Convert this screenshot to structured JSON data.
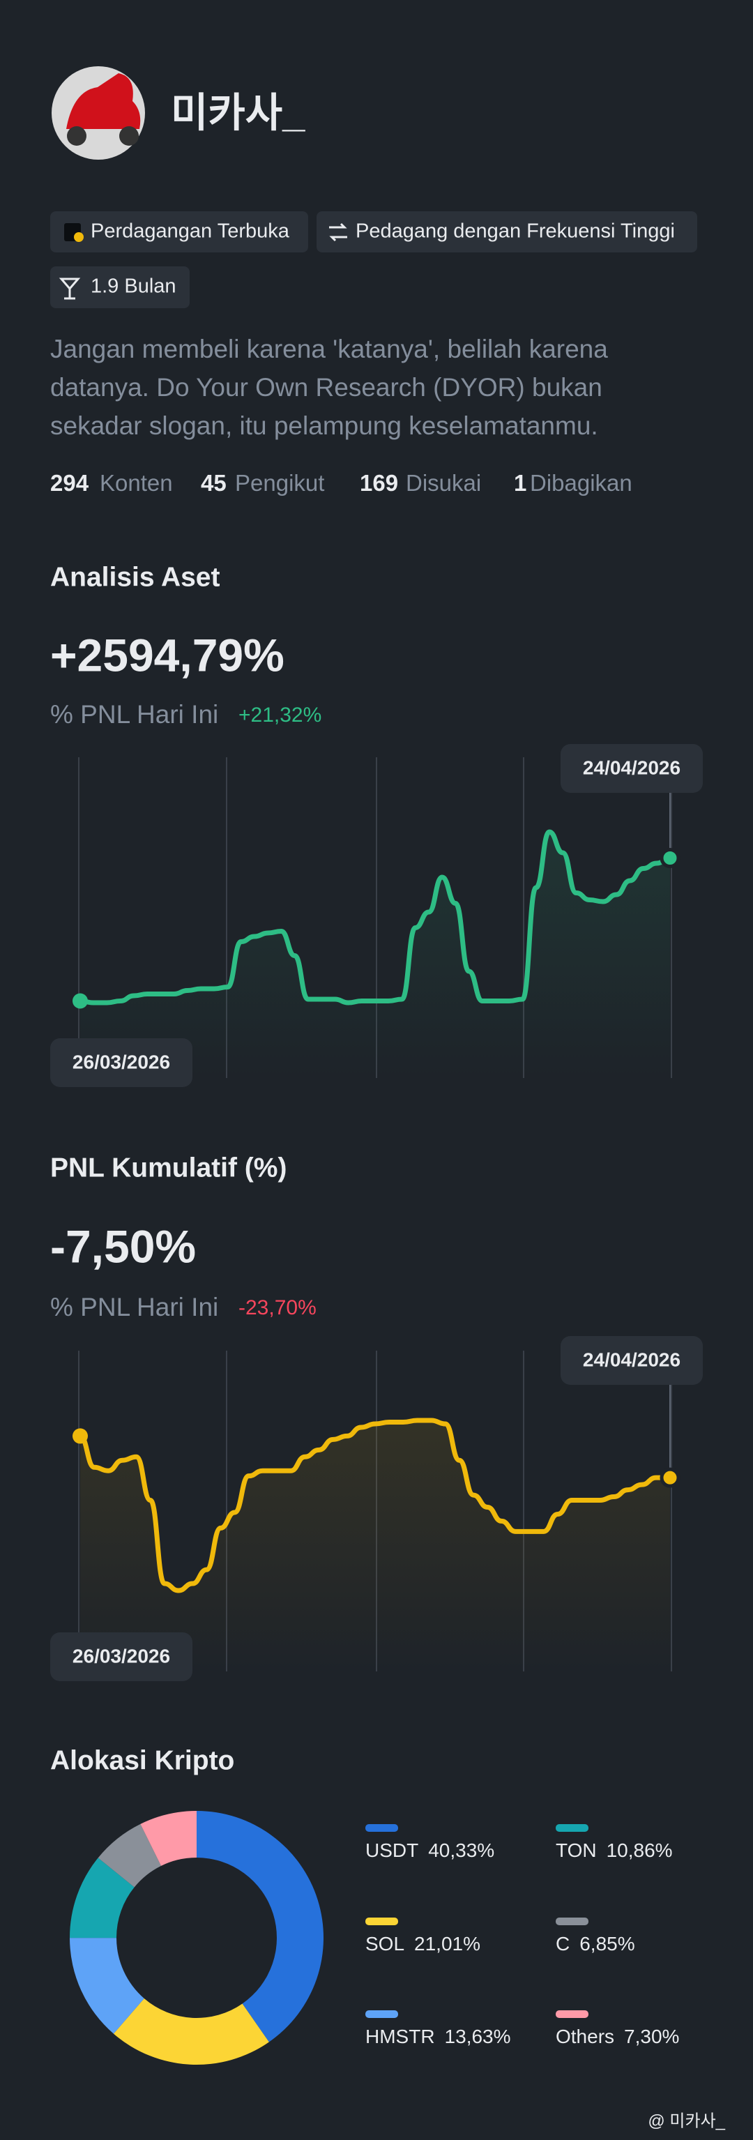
{
  "profile": {
    "name": "미카사_",
    "tags": [
      "Perdagangan Terbuka",
      "Pedagang dengan Frekuensi Tinggi",
      "1.9 Bulan"
    ],
    "bio": "Jangan membeli karena 'katanya', belilah karena datanya. Do Your Own Research (DYOR) bukan sekadar slogan, itu pelampung keselamatanmu.",
    "stats": [
      {
        "value": "294",
        "label": "Konten"
      },
      {
        "value": "45",
        "label": "Pengikut"
      },
      {
        "value": "169",
        "label": "Disukai"
      },
      {
        "value": "1",
        "label": "Dibagikan"
      }
    ]
  },
  "chart_data": [
    {
      "type": "line",
      "title": "Analisis Aset",
      "headline": "+2594,79%",
      "subtitle": "% PNL Hari Ini",
      "subtitle_value": "+21,32%",
      "start_date": "26/03/2026",
      "end_date": "24/04/2026",
      "color": "#2ebd85",
      "ylim": [
        0,
        100
      ],
      "values": [
        1,
        0,
        0,
        1,
        4,
        5,
        5,
        5,
        7,
        8,
        8,
        9,
        35,
        38,
        40,
        41,
        27,
        2,
        2,
        2,
        0,
        1,
        1,
        1,
        2,
        43,
        52,
        72,
        57,
        18,
        1,
        1,
        1,
        2,
        66,
        98,
        86,
        63,
        59,
        58,
        62,
        70,
        77,
        80,
        83
      ]
    },
    {
      "type": "line",
      "title": "PNL Kumulatif (%)",
      "headline": "-7,50%",
      "subtitle": "% PNL Hari Ini",
      "subtitle_value": "-23,70%",
      "start_date": "26/03/2026",
      "end_date": "24/04/2026",
      "color": "#f0b90b",
      "ylim": [
        0,
        100
      ],
      "values": [
        91,
        73,
        71,
        77,
        79,
        54,
        6,
        2,
        6,
        14,
        38,
        47,
        68,
        71,
        71,
        71,
        79,
        83,
        89,
        91,
        96,
        98,
        99,
        99,
        100,
        100,
        98,
        77,
        57,
        50,
        42,
        36,
        36,
        36,
        46,
        54,
        54,
        54,
        56,
        60,
        63,
        67,
        67
      ]
    },
    {
      "type": "pie",
      "title": "Alokasi Kripto",
      "donut": true,
      "categories": [
        "USDT",
        "SOL",
        "HMSTR",
        "TON",
        "C",
        "Others"
      ],
      "values": [
        40.33,
        21.01,
        13.63,
        10.86,
        6.85,
        7.3
      ],
      "value_labels": [
        "40,33%",
        "21,01%",
        "13,63%",
        "10,86%",
        "6,85%",
        "7,30%"
      ],
      "colors": [
        "#2671db",
        "#fcd535",
        "#5ea3f7",
        "#16a6b0",
        "#8a9099",
        "#ff9aa8"
      ]
    }
  ],
  "watermark": "@ 미카사_"
}
